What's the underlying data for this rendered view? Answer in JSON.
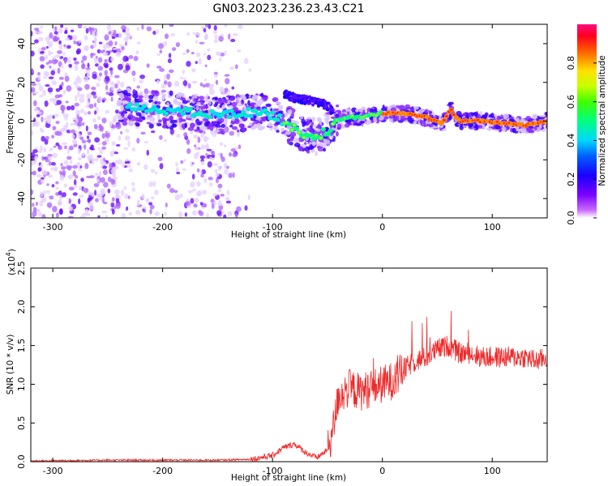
{
  "title": "GN03.2023.236.23.43.C21",
  "colors": {
    "snr_line": "#ee2a2a",
    "axis": "#000000",
    "background": "#ffffff"
  },
  "chart_data": [
    {
      "type": "heatmap",
      "xlabel": "Height of straight line (km)",
      "ylabel": "Frequency (Hz)",
      "xlim": [
        -320,
        150
      ],
      "ylim": [
        -50,
        50
      ],
      "xticks": [
        -300,
        -200,
        -100,
        0,
        100
      ],
      "yticks": [
        -40,
        -20,
        0,
        20,
        40
      ],
      "grid": false,
      "colormap": "rainbow (purple-blue-cyan-green-yellow-red-pink)",
      "colorbar": {
        "label": "Normalized spectral amplitude",
        "range": [
          0.0,
          1.0
        ],
        "ticks": [
          "0.0",
          "0.2",
          "0.4",
          "0.6",
          "0.8"
        ]
      },
      "ridge": {
        "description": "frequency ridge of the main signal",
        "x": [
          -230,
          -200,
          -170,
          -150,
          -130,
          -110,
          -100,
          -90,
          -80,
          -70,
          -60,
          -50,
          -45,
          -40,
          -30,
          -20,
          -10,
          0,
          20,
          40,
          55,
          62,
          70,
          90,
          110,
          130,
          150
        ],
        "y": [
          7,
          6,
          4,
          3,
          4,
          5,
          3,
          0,
          -4,
          -7,
          -8,
          -5,
          -3,
          0,
          2,
          2,
          3,
          4,
          4,
          2,
          -1,
          6,
          0,
          0,
          -1,
          -2,
          0
        ]
      },
      "secondary_ridge": {
        "description": "upper branch of the ridge",
        "x": [
          -90,
          -80,
          -70,
          -60,
          -50,
          -45
        ],
        "y": [
          14,
          12,
          11,
          10,
          8,
          5
        ]
      }
    },
    {
      "type": "line",
      "xlabel": "Height of straight line (km)",
      "ylabel": "SNR (10 * v/v)",
      "scale_label": "(x10",
      "scale_exponent": "4",
      "xlim": [
        -320,
        150
      ],
      "ylim": [
        0,
        2.5
      ],
      "xticks": [
        -300,
        -200,
        -100,
        0,
        100
      ],
      "yticks": [
        "0.0",
        "0.5",
        "1.0",
        "1.5",
        "2.0",
        "2.5"
      ],
      "grid": false,
      "series": [
        {
          "x": [
            -320,
            -250,
            -200,
            -150,
            -120,
            -100,
            -90,
            -80,
            -70,
            -60,
            -50,
            -45,
            -40,
            -30,
            -20,
            -10,
            0,
            10,
            20,
            30,
            40,
            50,
            60,
            70,
            80,
            90,
            100,
            110,
            120,
            130,
            140,
            150
          ],
          "values": [
            0.01,
            0.02,
            0.02,
            0.02,
            0.03,
            0.08,
            0.18,
            0.23,
            0.12,
            0.05,
            0.15,
            0.4,
            0.85,
            0.95,
            0.9,
            0.95,
            1.0,
            1.05,
            1.2,
            1.3,
            1.35,
            1.45,
            1.5,
            1.4,
            1.4,
            1.35,
            1.35,
            1.35,
            1.35,
            1.35,
            1.3,
            1.35
          ]
        }
      ]
    }
  ]
}
